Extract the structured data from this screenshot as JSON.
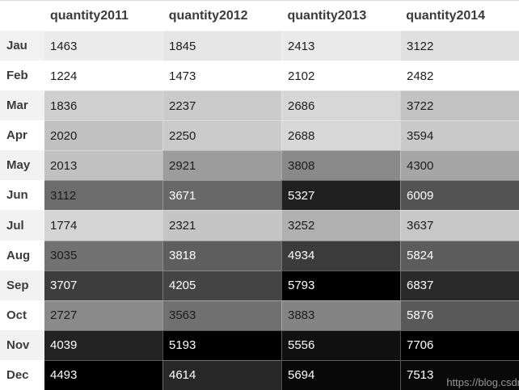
{
  "watermark": {
    "text": "https://blog.csdn"
  },
  "colors": {
    "header_text": "#3b3b3b",
    "row_label_text": "#3b3b3b",
    "value_text_dark": "#1d1d1d",
    "value_text_light": "#ffffff",
    "row_band_a": "#f2f2f2",
    "row_band_b": "#ffffff",
    "header_bg": "#ffffff",
    "watermark_text": "#969696",
    "top_edge_line": "#d9d9d9",
    "heatmap_low": "#ffffff",
    "heatmap_high": "#000000"
  },
  "chart_data": {
    "type": "heatmap",
    "title": "",
    "categories": [
      "Jau",
      "Feb",
      "Mar",
      "Apr",
      "May",
      "Jun",
      "Jul",
      "Aug",
      "Sep",
      "Oct",
      "Nov",
      "Dec"
    ],
    "series": [
      {
        "name": "quantity2011",
        "values": [
          1463,
          1224,
          1836,
          2020,
          2013,
          3112,
          1774,
          3035,
          3707,
          2727,
          4039,
          4493
        ]
      },
      {
        "name": "quantity2012",
        "values": [
          1845,
          1473,
          2237,
          2250,
          2921,
          3671,
          2321,
          3818,
          4205,
          3563,
          5193,
          4614
        ]
      },
      {
        "name": "quantity2013",
        "values": [
          2413,
          2102,
          2686,
          2688,
          3808,
          5327,
          3252,
          4934,
          5793,
          3883,
          5556,
          5694
        ]
      },
      {
        "name": "quantity2014",
        "values": [
          3122,
          2482,
          3722,
          3594,
          4300,
          6009,
          3637,
          5824,
          6837,
          5876,
          7706,
          7513
        ]
      }
    ],
    "color_scale": {
      "low": "#ffffff",
      "high": "#000000",
      "scope": "per-column",
      "note": "cell background linearly interpolated white(min) to black(max) within each column; text switches to white on dark cells"
    },
    "legend": "none",
    "grid": "off"
  }
}
